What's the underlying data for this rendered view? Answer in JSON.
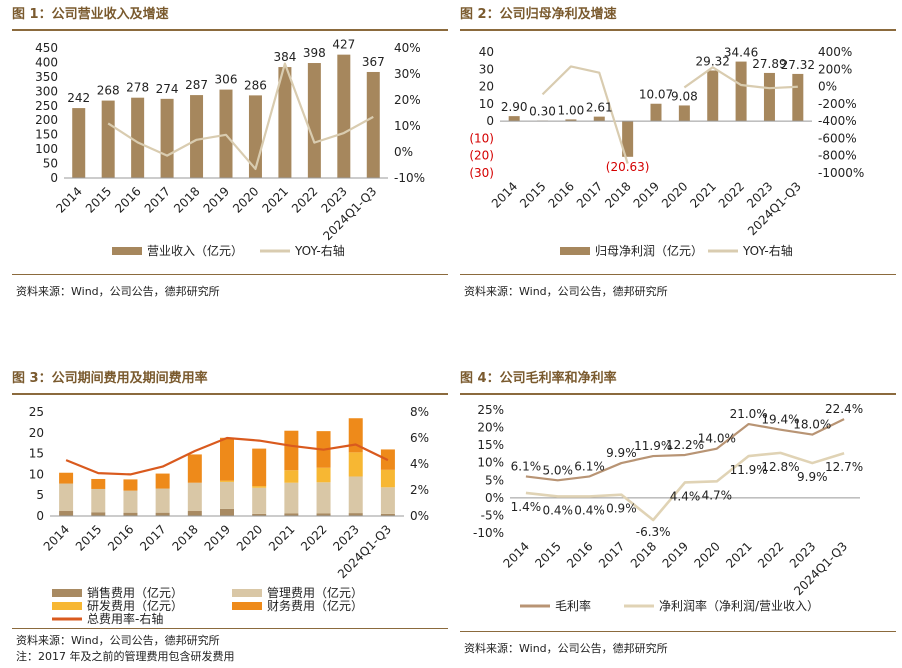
{
  "colors": {
    "bar": "#a6875d",
    "line_light": "#d9ccb0",
    "line_dark": "#b39674",
    "negative": "#d40000",
    "sales": "#a88a62",
    "mgmt": "#d9c7a6",
    "rd": "#f7b733",
    "fin": "#ee8a1a",
    "total": "#d95a1e",
    "gross": "#b89474",
    "net": "#e0d3b5",
    "title": "#7a5a2e",
    "rule": "#8b6a3d"
  },
  "panels": {
    "p1": {
      "title": "图 1：公司营业收入及增速",
      "source": "资料来源：Wind，公司公告，德邦研究所"
    },
    "p2": {
      "title": "图 2：公司归母净利及增速",
      "source": "资料来源：Wind，公司公告，德邦研究所"
    },
    "p3": {
      "title": "图 3：公司期间费用及期间费用率",
      "source": "资料来源：Wind，公司公告，德邦研究所",
      "note": "注：2017 年及之前的管理费用包含研发费用"
    },
    "p4": {
      "title": "图 4：公司毛利率和净利率",
      "source": "资料来源：Wind，公司公告，德邦研究所"
    }
  },
  "chart_data": [
    {
      "type": "bar",
      "categories": [
        "2014",
        "2015",
        "2016",
        "2017",
        "2018",
        "2019",
        "2020",
        "2021",
        "2022",
        "2023",
        "2024Q1-Q3"
      ],
      "series": [
        {
          "name": "营业收入（亿元）",
          "type": "bar",
          "values": [
            242,
            268,
            278,
            274,
            287,
            306,
            286,
            384,
            398,
            427,
            367
          ],
          "labels": [
            "242",
            "268",
            "278",
            "274",
            "287",
            "306",
            "286",
            "384",
            "398",
            "427",
            "367"
          ]
        },
        {
          "name": "YOY-右轴",
          "type": "line",
          "axis": "right",
          "values": [
            null,
            11,
            3.7,
            -1.4,
            4.7,
            6.6,
            -6.5,
            34,
            3.6,
            7.3,
            13.5
          ]
        }
      ],
      "ylim": [
        0,
        450
      ],
      "yticks": [
        "0",
        "50",
        "100",
        "150",
        "200",
        "250",
        "300",
        "350",
        "400",
        "450"
      ],
      "y2lim": [
        -10,
        40
      ],
      "y2ticks": [
        "-10%",
        "0%",
        "10%",
        "20%",
        "30%",
        "40%"
      ],
      "legend": "bottom"
    },
    {
      "type": "bar",
      "categories": [
        "2014",
        "2015",
        "2016",
        "2017",
        "2018",
        "2019",
        "2020",
        "2021",
        "2022",
        "2023",
        "2024Q1-Q3"
      ],
      "series": [
        {
          "name": "归母净利润（亿元）",
          "type": "bar",
          "values": [
            2.9,
            0.3,
            1.0,
            2.61,
            -20.63,
            10.07,
            9.08,
            29.32,
            34.46,
            27.89,
            27.32
          ],
          "labels": [
            "2.90",
            "0.30",
            "1.00",
            "2.61",
            "(20.63)",
            "10.07",
            "9.08",
            "29.32",
            "34.46",
            "27.89",
            "27.32"
          ]
        },
        {
          "name": "YOY-右轴",
          "type": "line",
          "axis": "right",
          "values": [
            null,
            -90,
            233,
            161,
            -890,
            null,
            -10,
            223,
            18,
            -19,
            -2
          ]
        }
      ],
      "ylim": [
        -30,
        40
      ],
      "yticks": [
        "(30)",
        "(20)",
        "(10)",
        "0",
        "10",
        "20",
        "30",
        "40"
      ],
      "y2lim": [
        -1000,
        400
      ],
      "y2ticks": [
        "-1000%",
        "-800%",
        "-600%",
        "-400%",
        "-200%",
        "0%",
        "200%",
        "400%"
      ],
      "legend": "bottom"
    },
    {
      "type": "bar",
      "stacked": true,
      "categories": [
        "2014",
        "2015",
        "2016",
        "2017",
        "2018",
        "2019",
        "2020",
        "2021",
        "2022",
        "2023",
        "2024Q1-Q3"
      ],
      "series": [
        {
          "name": "销售费用（亿元）",
          "type": "bar",
          "values": [
            1.2,
            0.9,
            0.8,
            0.8,
            1.2,
            1.7,
            0.5,
            0.6,
            0.6,
            0.7,
            0.5
          ]
        },
        {
          "name": "管理费用（亿元）",
          "type": "bar",
          "values": [
            6.6,
            5.6,
            5.3,
            5.8,
            6.8,
            6.5,
            6.3,
            7.4,
            7.5,
            8.8,
            6.4
          ]
        },
        {
          "name": "研发费用（亿元）",
          "type": "bar",
          "values": [
            0,
            0,
            0,
            0,
            0,
            0.3,
            0.4,
            3.0,
            3.5,
            5.8,
            4.2
          ]
        },
        {
          "name": "财务费用（亿元）",
          "type": "bar",
          "values": [
            2.6,
            2.4,
            2.7,
            3.6,
            6.8,
            10.3,
            9.0,
            9.5,
            8.8,
            8.2,
            4.9
          ]
        },
        {
          "name": "总费用率-右轴",
          "type": "line",
          "axis": "right",
          "values": [
            4.3,
            3.3,
            3.2,
            3.8,
            5.0,
            6.0,
            5.8,
            5.4,
            5.1,
            5.5,
            4.3
          ]
        }
      ],
      "ylim": [
        0,
        25
      ],
      "yticks": [
        "0",
        "5",
        "10",
        "15",
        "20",
        "25"
      ],
      "y2lim": [
        0,
        8
      ],
      "y2ticks": [
        "0%",
        "2%",
        "4%",
        "6%",
        "8%"
      ],
      "legend": "bottom"
    },
    {
      "type": "line",
      "categories": [
        "2014",
        "2015",
        "2016",
        "2017",
        "2018",
        "2019",
        "2020",
        "2021",
        "2022",
        "2023",
        "2024Q1-Q3"
      ],
      "series": [
        {
          "name": "毛利率",
          "values": [
            6.1,
            5.0,
            6.1,
            9.9,
            11.9,
            12.2,
            14.0,
            21.0,
            19.4,
            18.0,
            22.4
          ],
          "labels": [
            "6.1%",
            "5.0%",
            "6.1%",
            "9.9%",
            "11.9%",
            "12.2%",
            "14.0%",
            "21.0%",
            "19.4%",
            "18.0%",
            "22.4%"
          ]
        },
        {
          "name": "净利润率（净利润/营业收入）",
          "values": [
            1.4,
            0.4,
            0.4,
            0.9,
            -6.3,
            4.4,
            4.7,
            11.9,
            12.8,
            9.9,
            12.7
          ],
          "labels": [
            "1.4%",
            "0.4%",
            "0.4%",
            "0.9%",
            "-6.3%",
            "4.4%",
            "4.7%",
            "11.9%",
            "12.8%",
            "9.9%",
            "12.7%"
          ]
        }
      ],
      "ylim": [
        -10,
        25
      ],
      "yticks": [
        "-10%",
        "-5%",
        "0%",
        "5%",
        "10%",
        "15%",
        "20%",
        "25%"
      ],
      "legend": "bottom"
    }
  ]
}
